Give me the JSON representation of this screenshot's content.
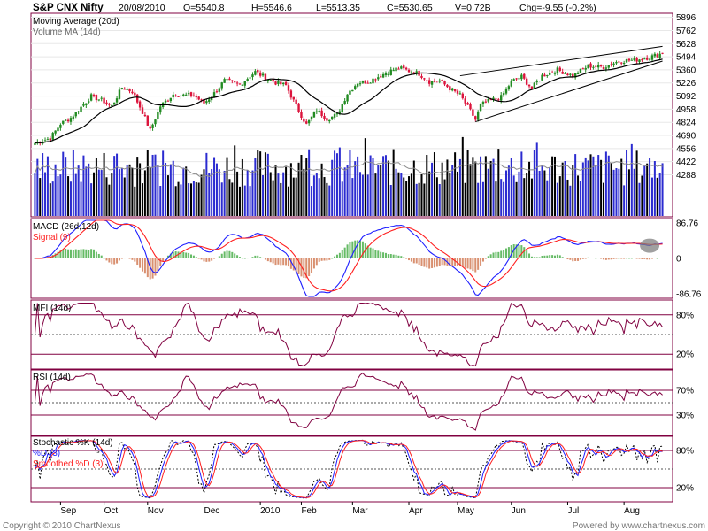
{
  "header": {
    "symbol": "S&P CNX Nifty",
    "date": "20/08/2010",
    "open": "O=5540.8",
    "high": "H=5546.6",
    "low": "L=5513.35",
    "close": "C=5530.65",
    "volume": "V=0.72B",
    "change": "Chg=-9.55 (-0.2%)"
  },
  "footer": {
    "copyright": "Copyright © 2010 ChartNexus",
    "powered": "Powered by www.chartnexus.com"
  },
  "colors": {
    "up": "#228b22",
    "down": "#dc143c",
    "volUp": "#2b2bd0",
    "volDown": "#000000",
    "macd": "#1f1fff",
    "signal": "#ff2020",
    "osc": "#800040",
    "frame": "#800040"
  },
  "chart_data": [
    {
      "type": "candlestick",
      "panel": "price",
      "legend": [
        "Moving Average (20d)",
        "Volume MA (14d)"
      ],
      "y_ticks": [
        5896,
        5762,
        5628,
        5494,
        5360,
        5226,
        5092,
        4958,
        4824,
        4690,
        4556,
        4422,
        4288
      ],
      "ylim": [
        4220,
        5920
      ],
      "x_labels": [
        "Sep",
        "Oct",
        "Nov",
        "Dec",
        "2010",
        "Feb",
        "Mar",
        "Apr",
        "May",
        "Jun",
        "Jul",
        "Aug"
      ],
      "x_label_index": [
        10,
        27,
        44,
        66,
        88,
        104,
        124,
        146,
        165,
        186,
        208,
        230
      ],
      "bars": 246,
      "anchors": [
        [
          0,
          4612
        ],
        [
          6,
          4660
        ],
        [
          10,
          4810
        ],
        [
          14,
          4870
        ],
        [
          18,
          4980
        ],
        [
          22,
          5090
        ],
        [
          26,
          5050
        ],
        [
          30,
          4990
        ],
        [
          34,
          5180
        ],
        [
          38,
          5140
        ],
        [
          42,
          4930
        ],
        [
          45,
          4740
        ],
        [
          49,
          4990
        ],
        [
          54,
          5110
        ],
        [
          58,
          5100
        ],
        [
          62,
          5100
        ],
        [
          66,
          5020
        ],
        [
          70,
          5120
        ],
        [
          74,
          5250
        ],
        [
          80,
          5210
        ],
        [
          86,
          5340
        ],
        [
          90,
          5280
        ],
        [
          94,
          5230
        ],
        [
          98,
          5200
        ],
        [
          102,
          4990
        ],
        [
          106,
          4800
        ],
        [
          110,
          4950
        ],
        [
          114,
          4860
        ],
        [
          118,
          4900
        ],
        [
          122,
          5120
        ],
        [
          126,
          5230
        ],
        [
          130,
          5240
        ],
        [
          134,
          5290
        ],
        [
          138,
          5340
        ],
        [
          142,
          5380
        ],
        [
          146,
          5350
        ],
        [
          150,
          5320
        ],
        [
          154,
          5240
        ],
        [
          158,
          5250
        ],
        [
          162,
          5170
        ],
        [
          166,
          5100
        ],
        [
          170,
          4940
        ],
        [
          172,
          4850
        ],
        [
          174,
          5000
        ],
        [
          178,
          5050
        ],
        [
          182,
          5080
        ],
        [
          186,
          5240
        ],
        [
          190,
          5290
        ],
        [
          194,
          5170
        ],
        [
          198,
          5300
        ],
        [
          204,
          5360
        ],
        [
          210,
          5300
        ],
        [
          216,
          5400
        ],
        [
          222,
          5390
        ],
        [
          228,
          5450
        ],
        [
          234,
          5460
        ],
        [
          240,
          5490
        ],
        [
          245,
          5531
        ]
      ],
      "volume_range": [
        0,
        0.95
      ],
      "trend_lines": [
        [
          [
            166,
            5300
          ],
          [
            246,
            5600
          ]
        ],
        [
          [
            172,
            4830
          ],
          [
            246,
            5450
          ]
        ]
      ]
    },
    {
      "type": "line",
      "panel": "macd",
      "legend": [
        "MACD (26d,12d)",
        "Signal (9)"
      ],
      "y_ticks": [
        86.76,
        0,
        -86.76
      ],
      "ylim": [
        -130,
        130
      ],
      "highlight_index": 240
    },
    {
      "type": "line",
      "panel": "mfi",
      "legend": [
        "MFI (14d)"
      ],
      "y_ticks": [
        80,
        20
      ],
      "bands": [
        80,
        50,
        20
      ],
      "ylim": [
        0,
        100
      ]
    },
    {
      "type": "line",
      "panel": "rsi",
      "legend": [
        "RSI (14d)"
      ],
      "y_ticks": [
        70,
        30
      ],
      "bands": [
        70,
        50,
        30
      ],
      "ylim": [
        0,
        100
      ]
    },
    {
      "type": "line",
      "panel": "stochastic",
      "legend": [
        "Stochastic %K (14d)",
        "%D (3)",
        "Smoothed %D (3)"
      ],
      "y_ticks": [
        80,
        20
      ],
      "bands": [
        80,
        50,
        20
      ],
      "ylim": [
        0,
        100
      ]
    }
  ]
}
